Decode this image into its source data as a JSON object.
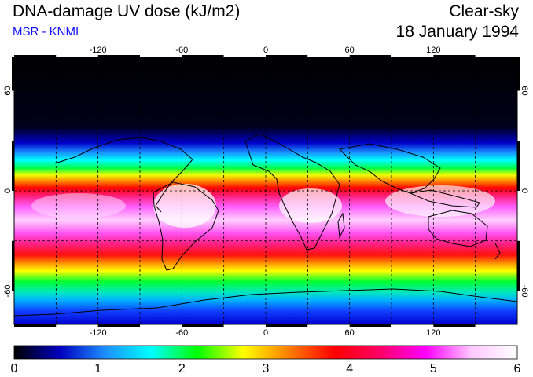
{
  "header": {
    "title": "DNA-damage UV dose (kJ/m2)",
    "subtitle": "MSR - KNMI",
    "condition": "Clear-sky",
    "date": "18 January 1994"
  },
  "map": {
    "lon_ticks": [
      "-120",
      "-60",
      "0",
      "60",
      "120"
    ],
    "lat_ticks": [
      "60",
      "0",
      "-60"
    ],
    "lat_ticks_right": [
      "60",
      "0",
      "-60"
    ],
    "colors": {
      "land_outline": "#000000",
      "grid": "#000000",
      "frame": "#000000"
    }
  },
  "colorbar": {
    "labels": [
      "0",
      "1",
      "2",
      "3",
      "4",
      "5",
      "6"
    ],
    "colors": [
      "#000000",
      "#0000c0",
      "#1e90ff",
      "#00ffff",
      "#00ff00",
      "#ffff00",
      "#ff8000",
      "#ff0000",
      "#ff0066",
      "#ff00ff",
      "#ffc8ff",
      "#ffffff"
    ]
  }
}
